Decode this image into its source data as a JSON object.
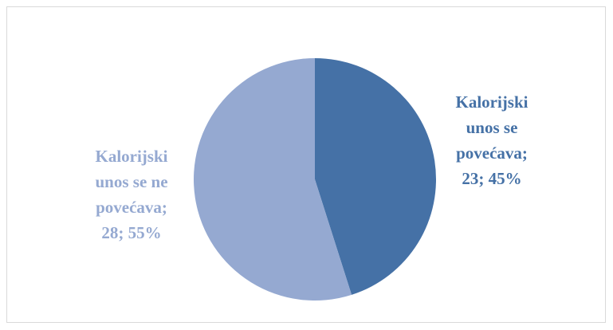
{
  "chart_data": {
    "type": "pie",
    "categories": [
      "Kalorijski unos se povećava",
      "Kalorijski unos se ne povećava"
    ],
    "values": [
      23,
      28
    ],
    "percent_labels": [
      "45%",
      "55%"
    ],
    "label_separator": "; ",
    "colors": [
      "#4571a6",
      "#95a9d1"
    ]
  }
}
